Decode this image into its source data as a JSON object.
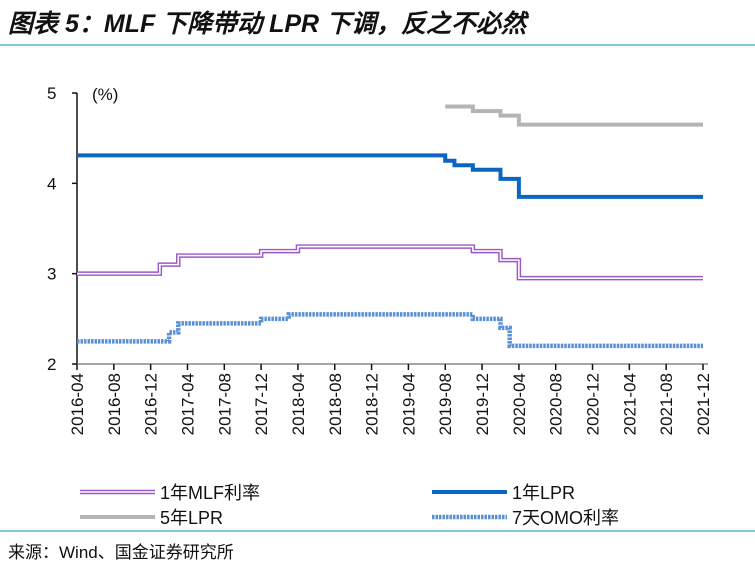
{
  "title": "图表 5：MLF 下降带动 LPR 下调，反之不必然",
  "source": "来源：Wind、国金证券研究所",
  "chart_data": {
    "type": "line",
    "step": true,
    "ylabel": "(%)",
    "ylim": [
      2,
      5
    ],
    "yticks": [
      2,
      3,
      4,
      5
    ],
    "xlim": [
      "2016-04",
      "2021-12"
    ],
    "xticks": [
      "2016-04",
      "2016-08",
      "2016-12",
      "2017-04",
      "2017-08",
      "2017-12",
      "2018-04",
      "2018-08",
      "2018-12",
      "2019-04",
      "2019-08",
      "2019-12",
      "2020-04",
      "2020-08",
      "2020-12",
      "2021-04",
      "2021-08",
      "2021-12"
    ],
    "grid": false,
    "legend_position": "bottom",
    "series": [
      {
        "name": "1年MLF利率",
        "color": "#9b59c8",
        "style": "double",
        "points": [
          [
            "2016-04",
            3.0
          ],
          [
            "2017-01",
            3.1
          ],
          [
            "2017-03",
            3.2
          ],
          [
            "2017-12",
            3.25
          ],
          [
            "2018-04",
            3.3
          ],
          [
            "2019-11",
            3.25
          ],
          [
            "2020-02",
            3.15
          ],
          [
            "2020-04",
            2.95
          ],
          [
            "2021-12",
            2.95
          ]
        ]
      },
      {
        "name": "1年LPR",
        "color": "#0b66c3",
        "style": "solid",
        "points": [
          [
            "2016-04",
            4.31
          ],
          [
            "2019-08",
            4.25
          ],
          [
            "2019-09",
            4.2
          ],
          [
            "2019-11",
            4.15
          ],
          [
            "2020-02",
            4.05
          ],
          [
            "2020-04",
            3.85
          ],
          [
            "2021-12",
            3.85
          ]
        ]
      },
      {
        "name": "5年LPR",
        "color": "#b4b4b4",
        "style": "solid",
        "points": [
          [
            "2019-08",
            4.85
          ],
          [
            "2019-11",
            4.8
          ],
          [
            "2020-02",
            4.75
          ],
          [
            "2020-04",
            4.65
          ],
          [
            "2021-12",
            4.65
          ]
        ]
      },
      {
        "name": "7天OMO利率",
        "color": "#5b8fd8",
        "style": "dotted",
        "points": [
          [
            "2016-04",
            2.25
          ],
          [
            "2017-02",
            2.35
          ],
          [
            "2017-03",
            2.45
          ],
          [
            "2017-12",
            2.5
          ],
          [
            "2018-03",
            2.55
          ],
          [
            "2019-11",
            2.5
          ],
          [
            "2020-02",
            2.4
          ],
          [
            "2020-03",
            2.2
          ],
          [
            "2021-12",
            2.2
          ]
        ]
      }
    ]
  }
}
